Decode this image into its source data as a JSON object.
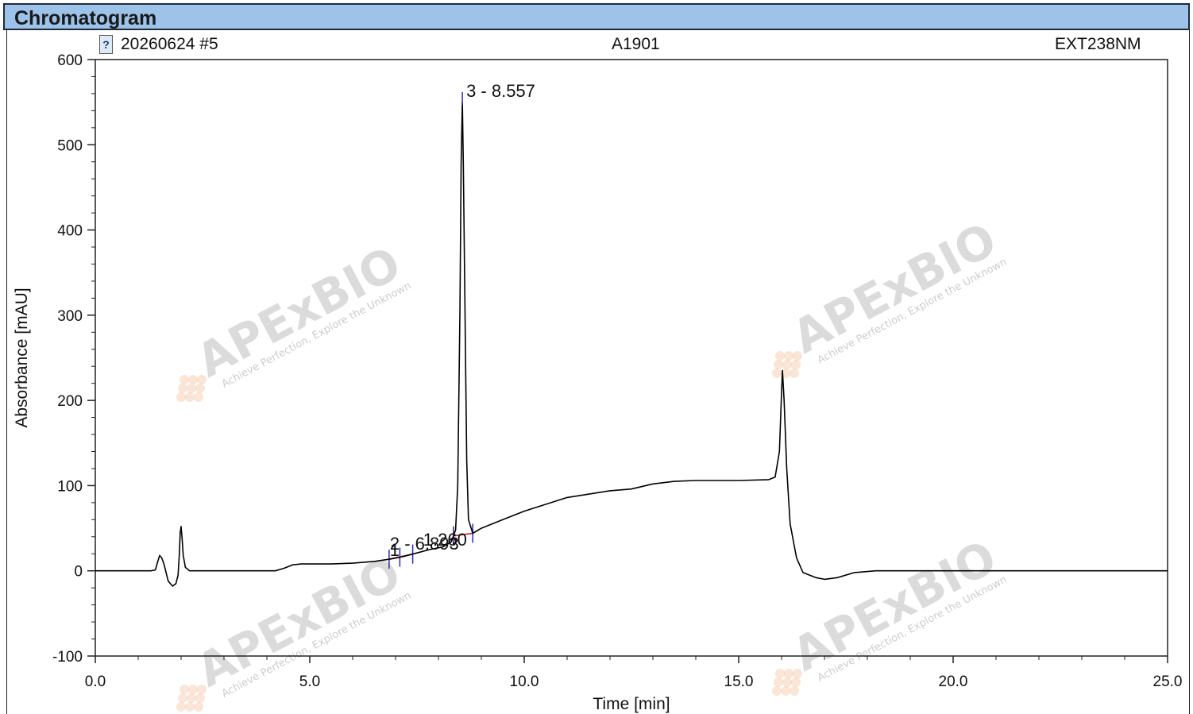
{
  "window": {
    "title": "Chromatogram"
  },
  "header": {
    "sample": "20260624 #5",
    "name": "A1901",
    "channel": "EXT238NM",
    "icon": "question-file-icon"
  },
  "watermark": {
    "text": "APExBIO",
    "tagline": "Achieve Perfection, Explore the Unknown",
    "color": "#f2a06a"
  },
  "chart_data": {
    "type": "line",
    "xlabel": "Time [min]",
    "ylabel": "Absorbance [mAU]",
    "xlim": [
      0,
      25
    ],
    "ylim": [
      -100,
      600
    ],
    "x_ticks": [
      "0.0",
      "5.0",
      "10.0",
      "15.0",
      "20.0",
      "25.0"
    ],
    "y_ticks": [
      "-100",
      "0",
      "100",
      "200",
      "300",
      "400",
      "500",
      "600"
    ],
    "grid": false,
    "line_color": "#000000",
    "trace": [
      [
        0.0,
        0
      ],
      [
        1.3,
        0
      ],
      [
        1.4,
        1
      ],
      [
        1.45,
        10
      ],
      [
        1.5,
        18
      ],
      [
        1.55,
        15
      ],
      [
        1.6,
        8
      ],
      [
        1.65,
        -2
      ],
      [
        1.7,
        -12
      ],
      [
        1.8,
        -18
      ],
      [
        1.88,
        -15
      ],
      [
        1.93,
        -5
      ],
      [
        1.96,
        20
      ],
      [
        1.98,
        45
      ],
      [
        2.0,
        52
      ],
      [
        2.02,
        40
      ],
      [
        2.05,
        18
      ],
      [
        2.1,
        4
      ],
      [
        2.2,
        0
      ],
      [
        4.2,
        0
      ],
      [
        4.4,
        3
      ],
      [
        4.6,
        7
      ],
      [
        4.8,
        8
      ],
      [
        5.5,
        8
      ],
      [
        6.0,
        9
      ],
      [
        6.5,
        11
      ],
      [
        6.9,
        14
      ],
      [
        7.2,
        17
      ],
      [
        7.5,
        21
      ],
      [
        7.8,
        25
      ],
      [
        8.1,
        28
      ],
      [
        8.3,
        34
      ],
      [
        8.4,
        48
      ],
      [
        8.45,
        100
      ],
      [
        8.5,
        300
      ],
      [
        8.53,
        480
      ],
      [
        8.557,
        550
      ],
      [
        8.58,
        480
      ],
      [
        8.62,
        300
      ],
      [
        8.66,
        130
      ],
      [
        8.7,
        60
      ],
      [
        8.8,
        44
      ],
      [
        9.0,
        50
      ],
      [
        9.5,
        60
      ],
      [
        10.0,
        70
      ],
      [
        10.5,
        78
      ],
      [
        11.0,
        86
      ],
      [
        11.5,
        90
      ],
      [
        12.0,
        94
      ],
      [
        12.5,
        96
      ],
      [
        13.0,
        102
      ],
      [
        13.5,
        105
      ],
      [
        14.0,
        106
      ],
      [
        15.0,
        106
      ],
      [
        15.7,
        107
      ],
      [
        15.85,
        110
      ],
      [
        15.95,
        140
      ],
      [
        16.0,
        210
      ],
      [
        16.02,
        235
      ],
      [
        16.06,
        200
      ],
      [
        16.12,
        120
      ],
      [
        16.2,
        55
      ],
      [
        16.35,
        15
      ],
      [
        16.5,
        -2
      ],
      [
        16.8,
        -8
      ],
      [
        17.0,
        -10
      ],
      [
        17.3,
        -8
      ],
      [
        17.7,
        -2
      ],
      [
        18.2,
        0
      ],
      [
        25.0,
        0
      ]
    ],
    "peak_labels": [
      {
        "text": "1",
        "x": 7.05
      },
      {
        "text": "2 - 6.893",
        "x": 7.35
      },
      {
        "text": "1.260",
        "x": 8.2
      },
      {
        "text": "3 - 8.557",
        "x": 8.557
      }
    ]
  }
}
